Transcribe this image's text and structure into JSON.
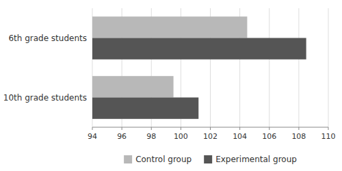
{
  "chart_data": {
    "type": "bar",
    "orientation": "horizontal",
    "categories": [
      "6th grade students",
      "10th grade students"
    ],
    "series": [
      {
        "name": "Control group",
        "color": "#b8b8b8",
        "values": [
          104.5,
          99.5
        ]
      },
      {
        "name": "Experimental group",
        "color": "#555555",
        "values": [
          108.5,
          101.2
        ]
      }
    ],
    "xlim": [
      94,
      110
    ],
    "xticks": [
      94,
      96,
      98,
      100,
      102,
      104,
      106,
      108,
      110
    ],
    "grid": true,
    "legend": "bottom"
  }
}
